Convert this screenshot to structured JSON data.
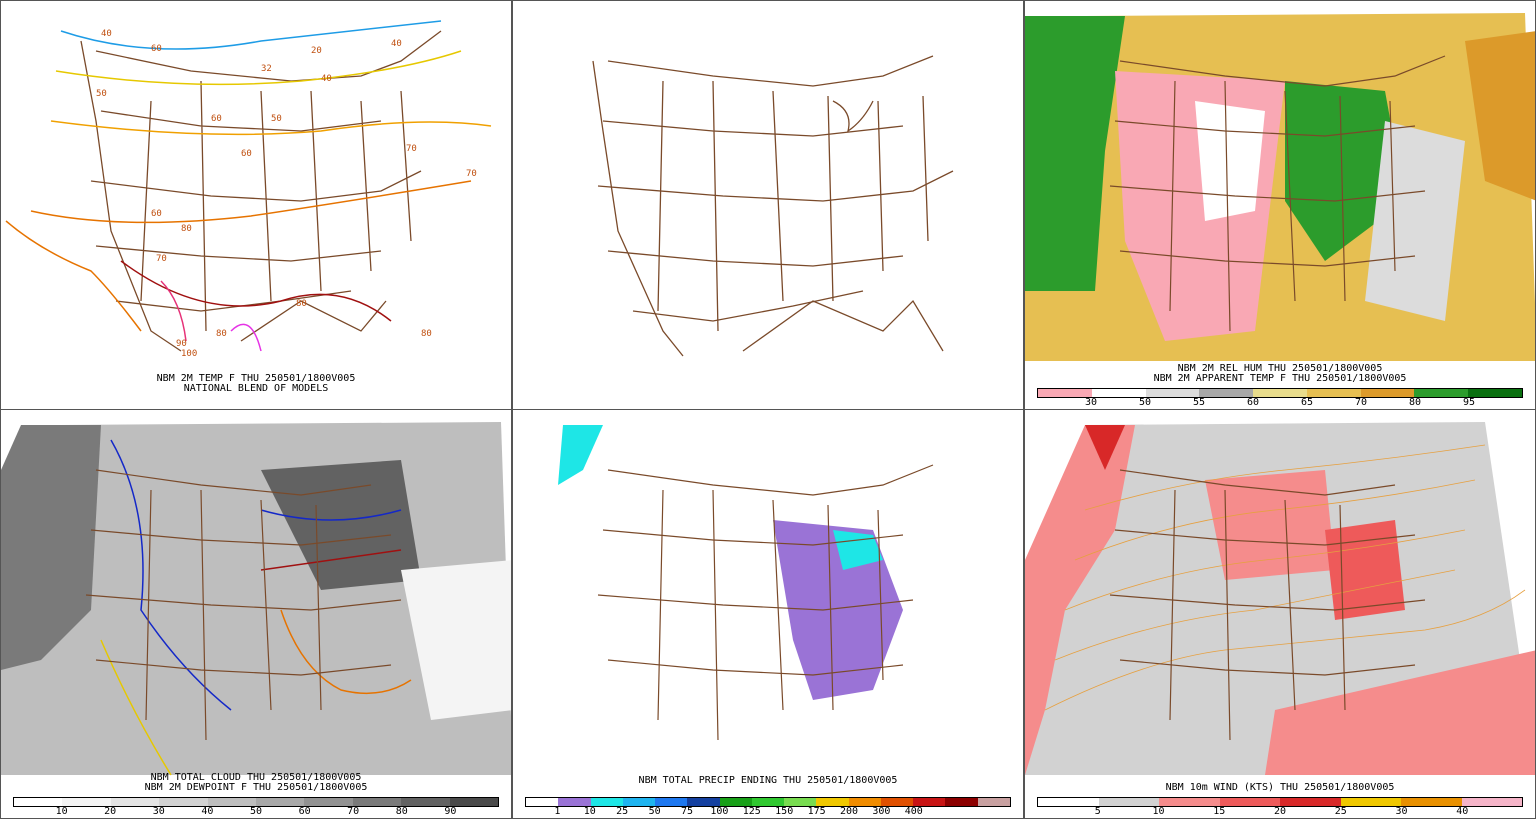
{
  "panels": {
    "temp": {
      "lines": [
        "NBM 2M TEMP F THU 250501/1800V005",
        "NATIONAL BLEND OF MODELS"
      ],
      "labels": [
        "40",
        "60",
        "50",
        "32",
        "20",
        "40",
        "40",
        "60",
        "50",
        "60",
        "70",
        "60",
        "80",
        "70",
        "80",
        "80",
        "80",
        "90",
        "100",
        "70"
      ]
    },
    "blank": {},
    "rh": {
      "lines": [
        "NBM 2M REL HUM THU 250501/1800V005",
        "NBM 2M APPARENT TEMP F THU 250501/1800V005"
      ],
      "colorbar": {
        "colors": [
          "#f9a8b4",
          "#ffffff",
          "#dcdcdc",
          "#a8a8a8",
          "#e8dc8c",
          "#e6bf52",
          "#dc9a2a",
          "#2c9c2c",
          "#0a7010"
        ],
        "ticks": [
          "30",
          "50",
          "55",
          "60",
          "65",
          "70",
          "80",
          "95"
        ]
      }
    },
    "cloud": {
      "lines": [
        "NBM TOTAL CLOUD THU 250501/1800V005",
        "NBM 2M DEWPOINT F THU 250501/1800V005"
      ],
      "colorbar": {
        "colors": [
          "#ffffff",
          "#f4f4f4",
          "#e4e4e4",
          "#d2d2d2",
          "#bebebe",
          "#a8a8a8",
          "#929292",
          "#7a7a7a",
          "#626262",
          "#4a4a4a"
        ],
        "ticks": [
          "10",
          "20",
          "30",
          "40",
          "50",
          "60",
          "70",
          "80",
          "90"
        ]
      }
    },
    "precip": {
      "lines": [
        "NBM TOTAL PRECIP ENDING THU 250501/1800V005"
      ],
      "colorbar": {
        "colors": [
          "#ffffff",
          "#9a73d6",
          "#1ee6e6",
          "#1eb4f0",
          "#1e78f0",
          "#1440a0",
          "#18a018",
          "#30c830",
          "#78dc50",
          "#f0c800",
          "#f08c00",
          "#e05000",
          "#c81414",
          "#8c0000",
          "#c8a0a0"
        ],
        "ticks": [
          "1",
          "10",
          "25",
          "50",
          "75",
          "100",
          "125",
          "150",
          "175",
          "200",
          "300",
          "400"
        ]
      }
    },
    "wind": {
      "lines": [
        "NBM 10m WIND (KTS) THU 250501/1800V005"
      ],
      "colorbar": {
        "colors": [
          "#ffffff",
          "#d2d2d2",
          "#f58c8c",
          "#ee5a5a",
          "#d82828",
          "#f0c800",
          "#e89000",
          "#f5b4c8"
        ],
        "ticks": [
          "5",
          "10",
          "15",
          "20",
          "25",
          "30",
          "40"
        ]
      }
    }
  }
}
